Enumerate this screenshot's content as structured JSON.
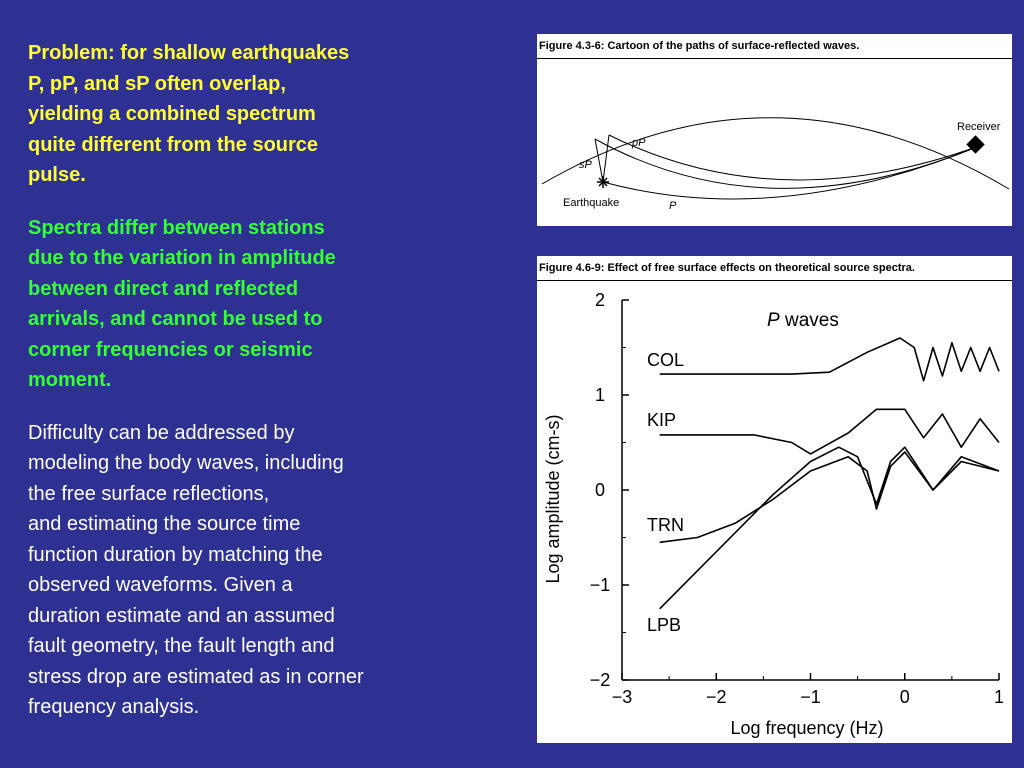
{
  "left_text": {
    "problem_lines": [
      "Problem: for shallow earthquakes",
      "P, pP, and sP often overlap,",
      "yielding a combined spectrum",
      "quite different from the source",
      "pulse."
    ],
    "spectra_lines": [
      "Spectra differ between stations",
      "due to the variation in amplitude",
      "between direct and reflected",
      "arrivals, and cannot be used to",
      "corner frequencies or  seismic",
      "moment."
    ],
    "difficulty_lines": [
      "Difficulty can be addressed by",
      "modeling the body waves, including",
      "the free surface reflections,",
      "and estimating the source time",
      "function duration by matching the",
      "observed waveforms. Given a",
      "duration estimate and an assumed",
      "fault geometry, the fault length and",
      "stress drop are estimated as in corner",
      "frequency analysis."
    ]
  },
  "figure1": {
    "caption": "Figure 4.3-6: Cartoon of the paths of surface-reflected waves.",
    "labels": {
      "receiver": "Receiver",
      "pP": "pP",
      "sP": "sP",
      "earthquake": "Earthquake",
      "P": "P"
    }
  },
  "figure2": {
    "caption": "Figure 4.6-9: Effect of free surface effects on theoretical source spectra.",
    "panel_title_italic": "P",
    "panel_title_rest": " waves",
    "xlabel": "Log frequency (Hz)",
    "ylabel": "Log amplitude (cm-s)",
    "x_ticks": [
      "−3",
      "−2",
      "−1",
      "0",
      "1"
    ],
    "y_ticks": [
      "2",
      "1",
      "0",
      "−1",
      "−2"
    ],
    "station_labels": [
      "COL",
      "KIP",
      "TRN",
      "LPB"
    ]
  },
  "chart_data": {
    "type": "line",
    "title": "P waves",
    "xlabel": "Log frequency (Hz)",
    "ylabel": "Log amplitude (cm-s)",
    "xlim": [
      -3,
      1
    ],
    "ylim": [
      -2,
      2
    ],
    "series": [
      {
        "name": "COL",
        "x": [
          -2.6,
          -1.2,
          -0.8,
          -0.4,
          -0.05,
          0.1,
          0.2,
          0.3,
          0.4,
          0.5,
          0.6,
          0.7,
          0.8,
          0.9,
          1.0
        ],
        "y": [
          1.22,
          1.22,
          1.24,
          1.45,
          1.6,
          1.5,
          1.15,
          1.5,
          1.2,
          1.55,
          1.25,
          1.5,
          1.25,
          1.5,
          1.25
        ]
      },
      {
        "name": "KIP",
        "x": [
          -2.6,
          -1.6,
          -1.2,
          -1.0,
          -0.6,
          -0.3,
          0.0,
          0.2,
          0.4,
          0.6,
          0.8,
          1.0
        ],
        "y": [
          0.58,
          0.58,
          0.5,
          0.38,
          0.6,
          0.85,
          0.85,
          0.55,
          0.8,
          0.45,
          0.75,
          0.5
        ]
      },
      {
        "name": "TRN",
        "x": [
          -2.6,
          -2.2,
          -1.8,
          -1.4,
          -1.0,
          -0.6,
          -0.4,
          -0.3,
          -0.15,
          0.0,
          0.3,
          0.6,
          1.0
        ],
        "y": [
          -0.55,
          -0.5,
          -0.35,
          -0.1,
          0.2,
          0.35,
          0.2,
          -0.2,
          0.25,
          0.4,
          0.0,
          0.3,
          0.2
        ]
      },
      {
        "name": "LPB",
        "x": [
          -2.6,
          -2.2,
          -1.8,
          -1.4,
          -1.0,
          -0.7,
          -0.5,
          -0.3,
          -0.15,
          0.0,
          0.3,
          0.6,
          1.0
        ],
        "y": [
          -1.25,
          -0.85,
          -0.45,
          -0.05,
          0.3,
          0.45,
          0.35,
          -0.15,
          0.3,
          0.45,
          0.0,
          0.35,
          0.2
        ]
      }
    ]
  }
}
